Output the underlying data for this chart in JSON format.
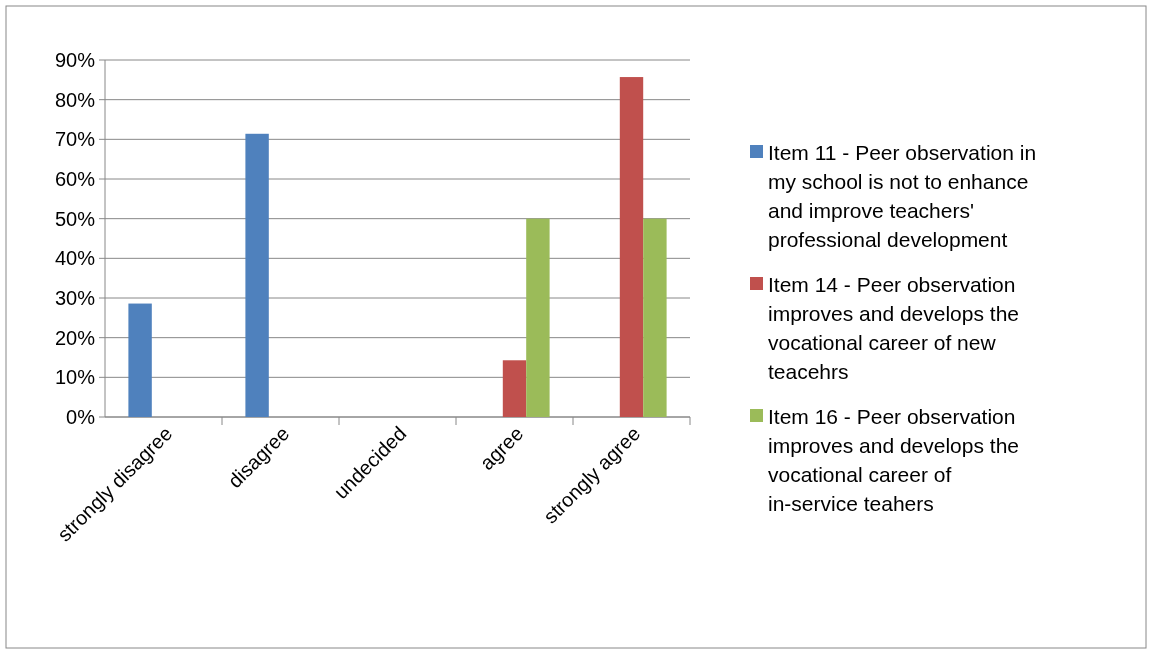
{
  "chart_data": {
    "type": "bar",
    "categories": [
      "strongly disagree",
      "disagree",
      "undecided",
      "agree",
      "strongly agree"
    ],
    "series": [
      {
        "name": "Item 11 - Peer observation in my school is not to enhance and improve teachers' professional development",
        "color": "#4f81bd",
        "values": [
          28.6,
          71.4,
          0,
          0,
          0
        ]
      },
      {
        "name": "Item 14 - Peer observation improves and develops the vocational career of new teacehrs",
        "color": "#c0504d",
        "values": [
          0,
          0,
          0,
          14.3,
          85.7
        ]
      },
      {
        "name": "Item 16 - Peer observation improves and develops the vocational career of in-service teahers",
        "color": "#9bbb59",
        "values": [
          0,
          0,
          0,
          50,
          50
        ]
      }
    ],
    "ylim": [
      0,
      90
    ],
    "yticks": [
      {
        "value": 0,
        "label": "0%"
      },
      {
        "value": 10,
        "label": "10%"
      },
      {
        "value": 20,
        "label": "20%"
      },
      {
        "value": 30,
        "label": "30%"
      },
      {
        "value": 40,
        "label": "40%"
      },
      {
        "value": 50,
        "label": "50%"
      },
      {
        "value": 60,
        "label": "60%"
      },
      {
        "value": 70,
        "label": "70%"
      },
      {
        "value": 80,
        "label": "80%"
      },
      {
        "value": 90,
        "label": "90%"
      }
    ],
    "grid": "y",
    "legend": "right"
  }
}
